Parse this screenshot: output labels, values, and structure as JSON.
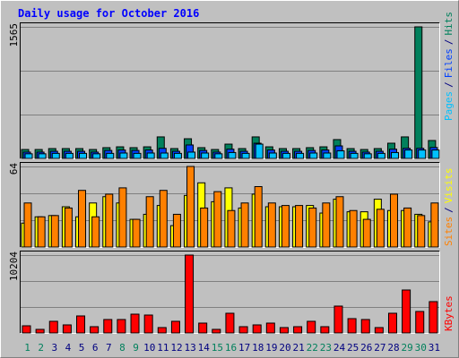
{
  "chart_data": [
    {
      "type": "bar",
      "title": "Daily usage for October 2016",
      "series": [
        {
          "name": "Pages",
          "color": "#00C0FF",
          "values": [
            55,
            55,
            60,
            60,
            60,
            55,
            60,
            64,
            60,
            64,
            64,
            60,
            75,
            64,
            55,
            70,
            60,
            170,
            64,
            60,
            60,
            64,
            64,
            90,
            60,
            55,
            60,
            70,
            100,
            100,
            100
          ]
        },
        {
          "name": "Files",
          "color": "#0040FF",
          "values": [
            75,
            75,
            85,
            85,
            85,
            75,
            95,
            100,
            95,
            100,
            120,
            85,
            160,
            95,
            75,
            110,
            85,
            181,
            100,
            85,
            85,
            95,
            100,
            149,
            85,
            75,
            85,
            110,
            120,
            120,
            130
          ]
        },
        {
          "name": "Hits",
          "color": "#00805C",
          "values": [
            106,
            106,
            117,
            117,
            117,
            106,
            128,
            138,
            128,
            138,
            256,
            117,
            234,
            128,
            106,
            170,
            117,
            256,
            138,
            117,
            117,
            128,
            138,
            224,
            117,
            106,
            117,
            181,
            256,
            1565,
            213
          ]
        }
      ],
      "ylim": [
        0,
        1565
      ],
      "yticks": [
        1565
      ],
      "grid_divisions": 3,
      "legend_separator": "/"
    },
    {
      "type": "bar",
      "series": [
        {
          "name": "Sites",
          "color": "#FF8000",
          "values": [
            35,
            24,
            25,
            31,
            45,
            24,
            42,
            47,
            22,
            40,
            45,
            26,
            64,
            31,
            44,
            29,
            35,
            48,
            35,
            33,
            33,
            31,
            35,
            40,
            29,
            22,
            30,
            42,
            31,
            25,
            35
          ]
        },
        {
          "name": "Visits",
          "color": "#FFFF00",
          "values": [
            19,
            24,
            25,
            32,
            24,
            35,
            40,
            35,
            22,
            26,
            33,
            17,
            41,
            51,
            36,
            47,
            31,
            42,
            32,
            32,
            32,
            33,
            27,
            38,
            28,
            28,
            38,
            29,
            29,
            26,
            20
          ]
        }
      ],
      "ylim": [
        0,
        64
      ],
      "yticks": [
        64
      ],
      "grid_divisions": 3,
      "legend_separator": "/"
    },
    {
      "type": "bar",
      "categories": [
        "1",
        "2",
        "3",
        "4",
        "5",
        "6",
        "7",
        "8",
        "9",
        "10",
        "11",
        "12",
        "13",
        "14",
        "15",
        "16",
        "17",
        "18",
        "19",
        "20",
        "21",
        "22",
        "23",
        "24",
        "25",
        "26",
        "27",
        "28",
        "29",
        "30",
        "31"
      ],
      "category_colors": [
        "#00805C",
        "#00805C",
        "#000080",
        "#000080",
        "#000080",
        "#000080",
        "#000080",
        "#00805C",
        "#00805C",
        "#000080",
        "#000080",
        "#000080",
        "#000080",
        "#000080",
        "#00805C",
        "#00805C",
        "#000080",
        "#000080",
        "#000080",
        "#000080",
        "#000080",
        "#00805C",
        "#00805C",
        "#000080",
        "#000080",
        "#000080",
        "#000080",
        "#000080",
        "#00805C",
        "#00805C",
        "#000080"
      ],
      "series": [
        {
          "name": "KBytes",
          "color": "#FF0000",
          "values": [
            938,
            469,
            1525,
            1056,
            2229,
            821,
            1760,
            1760,
            2463,
            2346,
            704,
            1525,
            10204,
            1290,
            469,
            2581,
            821,
            1056,
            1290,
            704,
            821,
            1525,
            821,
            3519,
            1877,
            1760,
            704,
            2581,
            5630,
            2815,
            4106
          ]
        }
      ],
      "ylim": [
        0,
        10204
      ],
      "yticks": [
        10204
      ],
      "grid_divisions": 3
    }
  ]
}
